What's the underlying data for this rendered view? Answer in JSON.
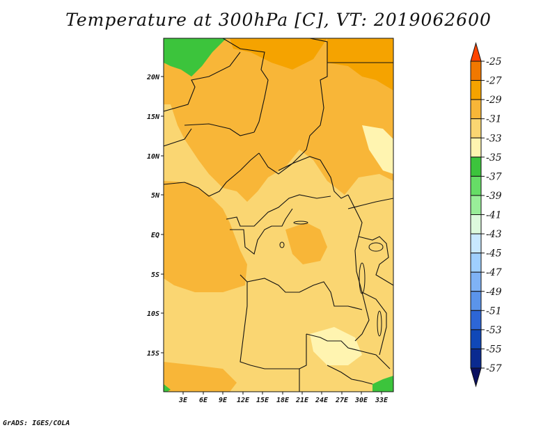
{
  "title": "Temperature at 300hPa [C], VT: 2019062600",
  "credit": "GrADS: IGES/COLA",
  "map": {
    "lon_ticks": [
      "3E",
      "6E",
      "9E",
      "12E",
      "15E",
      "18E",
      "21E",
      "24E",
      "27E",
      "30E",
      "33E"
    ],
    "lat_ticks": [
      "20N",
      "15N",
      "10N",
      "5N",
      "EQ",
      "5S",
      "10S",
      "15S"
    ]
  },
  "colorbar": {
    "labels": [
      "-25",
      "-27",
      "-29",
      "-31",
      "-33",
      "-35",
      "-37",
      "-39",
      "-41",
      "-43",
      "-45",
      "-47",
      "-49",
      "-51",
      "-53",
      "-55",
      "-57"
    ],
    "colors": [
      "#ff4500",
      "#f07800",
      "#f5a300",
      "#f8b638",
      "#fad672",
      "#fff4b0",
      "#3cc43c",
      "#66dd66",
      "#99ee99",
      "#ddfadd",
      "#c8e8ff",
      "#9fcfff",
      "#7fb2f5",
      "#5b94ea",
      "#2d66d6",
      "#1048b8",
      "#0a2a90",
      "#0a1060"
    ],
    "colors_note": ""
  },
  "palette": {
    "land_base": "#fad672",
    "warm": "#f8b638",
    "hot": "#f5a300",
    "cool": "#fff4b0",
    "cold": "#3cc43c"
  }
}
